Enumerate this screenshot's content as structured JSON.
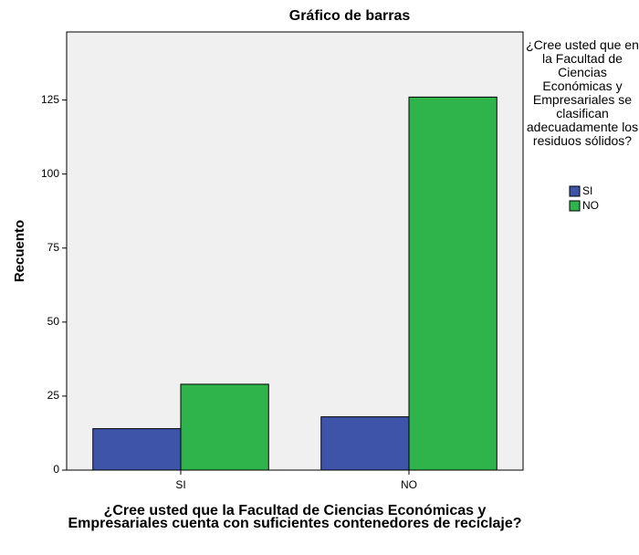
{
  "chart_data": {
    "type": "bar",
    "title": "Gráfico de barras",
    "y_label": "Recuento",
    "x_label": "¿Cree usted que la Facultad de Ciencias Económicas y Empresariales cuenta con suficientes contenedores de reciclaje?",
    "legend_title": "¿Cree usted que en la Facultad de Ciencias Económicas y Empresariales se clasifican adecuadamente los residuos sólidos?",
    "categories": [
      "SI",
      "NO"
    ],
    "series": [
      {
        "name": "SI",
        "color": "#3d54a8",
        "values": [
          14,
          18
        ]
      },
      {
        "name": "NO",
        "color": "#2fb34b",
        "values": [
          29,
          126
        ]
      }
    ],
    "ylim": [
      0,
      148
    ],
    "yticks": [
      0,
      25,
      50,
      75,
      100,
      125
    ],
    "grid": false
  }
}
